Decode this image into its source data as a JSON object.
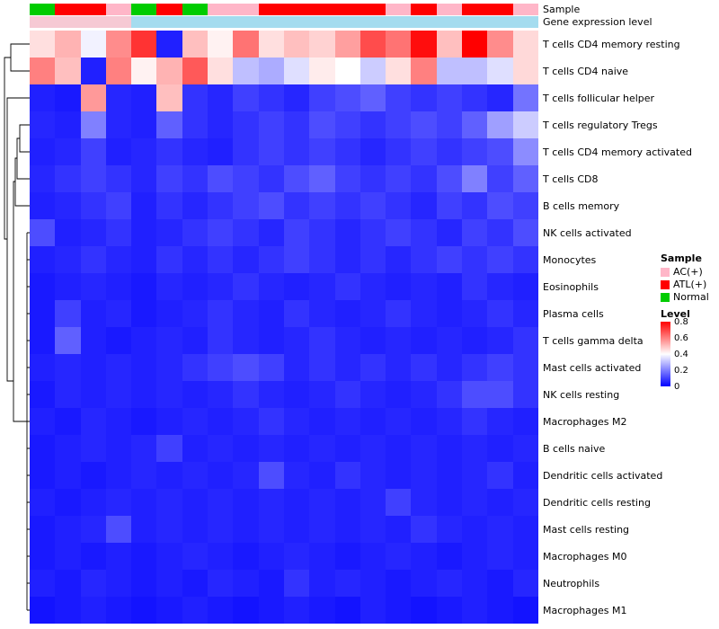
{
  "annotations": {
    "sample_label": "Sample",
    "expression_label": "Gene expression level",
    "sample_colors": {
      "AC(+)": "#FFB6C8",
      "ATL(+)": "#FF0000",
      "Normal": "#00CC00"
    },
    "sample_values": [
      "Normal",
      "ATL(+)",
      "ATL(+)",
      "AC(+)",
      "Normal",
      "ATL(+)",
      "Normal",
      "AC(+)",
      "AC(+)",
      "ATL(+)",
      "ATL(+)",
      "ATL(+)",
      "ATL(+)",
      "ATL(+)",
      "AC(+)",
      "ATL(+)",
      "AC(+)",
      "ATL(+)",
      "ATL(+)",
      "AC(+)"
    ],
    "expression_colors": {
      "pink": "#F6C9D4",
      "blue": "#A4DCEF"
    },
    "expression_values": [
      "pink",
      "pink",
      "pink",
      "pink",
      "blue",
      "blue",
      "blue",
      "blue",
      "blue",
      "blue",
      "blue",
      "blue",
      "blue",
      "blue",
      "blue",
      "blue",
      "blue",
      "blue",
      "blue",
      "blue"
    ]
  },
  "legend": {
    "sample_title": "Sample",
    "sample_items": [
      {
        "label": "AC(+)",
        "color": "#FFB6C8"
      },
      {
        "label": "ATL(+)",
        "color": "#FF0000"
      },
      {
        "label": "Normal",
        "color": "#00CC00"
      }
    ],
    "level_title": "Level",
    "level_ticks": [
      "0.8",
      "0.6",
      "0.4",
      "0.2",
      "0"
    ]
  },
  "chart_data": {
    "type": "heatmap",
    "title": "",
    "rows": [
      "T cells CD4 memory resting",
      "T cells CD4 naive",
      "T cells follicular helper",
      "T cells regulatory  Tregs",
      "T cells CD4 memory activated",
      "T cells CD8",
      "B cells memory",
      "NK cells activated",
      "Monocytes",
      "Eosinophils",
      "Plasma cells",
      "T cells gamma delta",
      "Mast cells activated",
      "NK cells resting",
      "Macrophages M2",
      "B cells naive",
      "Dendritic cells activated",
      "Dendritic cells resting",
      "Mast cells resting",
      "Macrophages M0",
      "Neutrophils",
      "Macrophages M1"
    ],
    "n_columns": 20,
    "value_range": [
      0,
      0.8
    ],
    "colormap": {
      "low": "#0000FF",
      "mid": "#FFFFFF",
      "high": "#FF0000",
      "mid_value": 0.4
    },
    "matrix": [
      [
        0.45,
        0.52,
        0.38,
        0.58,
        0.72,
        0.05,
        0.5,
        0.42,
        0.62,
        0.45,
        0.5,
        0.47,
        0.55,
        0.68,
        0.62,
        0.78,
        0.5,
        0.8,
        0.58,
        0.46
      ],
      [
        0.6,
        0.5,
        0.05,
        0.6,
        0.42,
        0.52,
        0.66,
        0.45,
        0.3,
        0.27,
        0.35,
        0.43,
        0.4,
        0.32,
        0.45,
        0.6,
        0.3,
        0.3,
        0.35,
        0.46
      ],
      [
        0.05,
        0.04,
        0.56,
        0.06,
        0.05,
        0.5,
        0.08,
        0.06,
        0.1,
        0.08,
        0.06,
        0.1,
        0.12,
        0.15,
        0.1,
        0.08,
        0.1,
        0.08,
        0.06,
        0.18
      ],
      [
        0.06,
        0.05,
        0.2,
        0.06,
        0.05,
        0.15,
        0.08,
        0.06,
        0.08,
        0.1,
        0.08,
        0.12,
        0.1,
        0.08,
        0.1,
        0.12,
        0.1,
        0.15,
        0.25,
        0.32
      ],
      [
        0.05,
        0.06,
        0.1,
        0.05,
        0.06,
        0.08,
        0.06,
        0.05,
        0.08,
        0.1,
        0.08,
        0.1,
        0.08,
        0.06,
        0.08,
        0.1,
        0.08,
        0.1,
        0.12,
        0.22
      ],
      [
        0.06,
        0.08,
        0.1,
        0.08,
        0.06,
        0.1,
        0.08,
        0.12,
        0.1,
        0.08,
        0.12,
        0.15,
        0.1,
        0.08,
        0.1,
        0.08,
        0.12,
        0.2,
        0.1,
        0.15
      ],
      [
        0.05,
        0.06,
        0.08,
        0.1,
        0.05,
        0.08,
        0.06,
        0.08,
        0.1,
        0.12,
        0.08,
        0.1,
        0.08,
        0.1,
        0.08,
        0.06,
        0.1,
        0.08,
        0.12,
        0.1
      ],
      [
        0.12,
        0.05,
        0.06,
        0.08,
        0.05,
        0.06,
        0.08,
        0.1,
        0.08,
        0.06,
        0.1,
        0.08,
        0.06,
        0.08,
        0.1,
        0.08,
        0.06,
        0.1,
        0.08,
        0.12
      ],
      [
        0.05,
        0.06,
        0.08,
        0.06,
        0.05,
        0.08,
        0.06,
        0.08,
        0.06,
        0.08,
        0.1,
        0.08,
        0.06,
        0.08,
        0.06,
        0.08,
        0.1,
        0.08,
        0.1,
        0.08
      ],
      [
        0.04,
        0.05,
        0.06,
        0.05,
        0.04,
        0.06,
        0.05,
        0.06,
        0.08,
        0.06,
        0.05,
        0.06,
        0.08,
        0.06,
        0.05,
        0.06,
        0.05,
        0.08,
        0.06,
        0.05
      ],
      [
        0.04,
        0.1,
        0.05,
        0.06,
        0.04,
        0.05,
        0.06,
        0.08,
        0.06,
        0.05,
        0.08,
        0.06,
        0.05,
        0.06,
        0.08,
        0.06,
        0.05,
        0.06,
        0.08,
        0.06
      ],
      [
        0.04,
        0.15,
        0.05,
        0.04,
        0.05,
        0.06,
        0.05,
        0.08,
        0.06,
        0.05,
        0.06,
        0.08,
        0.06,
        0.05,
        0.06,
        0.05,
        0.06,
        0.05,
        0.06,
        0.08
      ],
      [
        0.05,
        0.06,
        0.05,
        0.06,
        0.05,
        0.06,
        0.08,
        0.1,
        0.12,
        0.1,
        0.06,
        0.08,
        0.06,
        0.08,
        0.06,
        0.08,
        0.06,
        0.08,
        0.1,
        0.08
      ],
      [
        0.04,
        0.06,
        0.05,
        0.06,
        0.05,
        0.06,
        0.05,
        0.06,
        0.08,
        0.06,
        0.05,
        0.06,
        0.08,
        0.06,
        0.05,
        0.06,
        0.08,
        0.12,
        0.12,
        0.08
      ],
      [
        0.05,
        0.04,
        0.06,
        0.05,
        0.04,
        0.05,
        0.06,
        0.05,
        0.06,
        0.08,
        0.06,
        0.05,
        0.06,
        0.05,
        0.06,
        0.05,
        0.06,
        0.08,
        0.06,
        0.05
      ],
      [
        0.04,
        0.05,
        0.06,
        0.05,
        0.06,
        0.1,
        0.05,
        0.06,
        0.05,
        0.06,
        0.05,
        0.06,
        0.05,
        0.06,
        0.05,
        0.06,
        0.05,
        0.06,
        0.05,
        0.06
      ],
      [
        0.04,
        0.05,
        0.04,
        0.05,
        0.06,
        0.05,
        0.06,
        0.05,
        0.06,
        0.12,
        0.06,
        0.05,
        0.08,
        0.06,
        0.05,
        0.06,
        0.05,
        0.06,
        0.08,
        0.05
      ],
      [
        0.05,
        0.04,
        0.05,
        0.06,
        0.05,
        0.06,
        0.05,
        0.06,
        0.05,
        0.06,
        0.05,
        0.06,
        0.05,
        0.06,
        0.1,
        0.06,
        0.05,
        0.06,
        0.05,
        0.06
      ],
      [
        0.04,
        0.05,
        0.06,
        0.12,
        0.05,
        0.06,
        0.05,
        0.06,
        0.05,
        0.06,
        0.05,
        0.06,
        0.05,
        0.06,
        0.05,
        0.08,
        0.06,
        0.05,
        0.06,
        0.05
      ],
      [
        0.04,
        0.05,
        0.04,
        0.05,
        0.04,
        0.05,
        0.06,
        0.05,
        0.04,
        0.05,
        0.06,
        0.05,
        0.04,
        0.05,
        0.06,
        0.05,
        0.04,
        0.05,
        0.06,
        0.05
      ],
      [
        0.05,
        0.04,
        0.06,
        0.05,
        0.04,
        0.05,
        0.04,
        0.06,
        0.05,
        0.04,
        0.08,
        0.05,
        0.06,
        0.05,
        0.04,
        0.05,
        0.06,
        0.05,
        0.04,
        0.06
      ],
      [
        0.03,
        0.04,
        0.05,
        0.04,
        0.03,
        0.04,
        0.05,
        0.04,
        0.03,
        0.04,
        0.05,
        0.04,
        0.03,
        0.05,
        0.04,
        0.03,
        0.04,
        0.05,
        0.04,
        0.03
      ]
    ]
  }
}
